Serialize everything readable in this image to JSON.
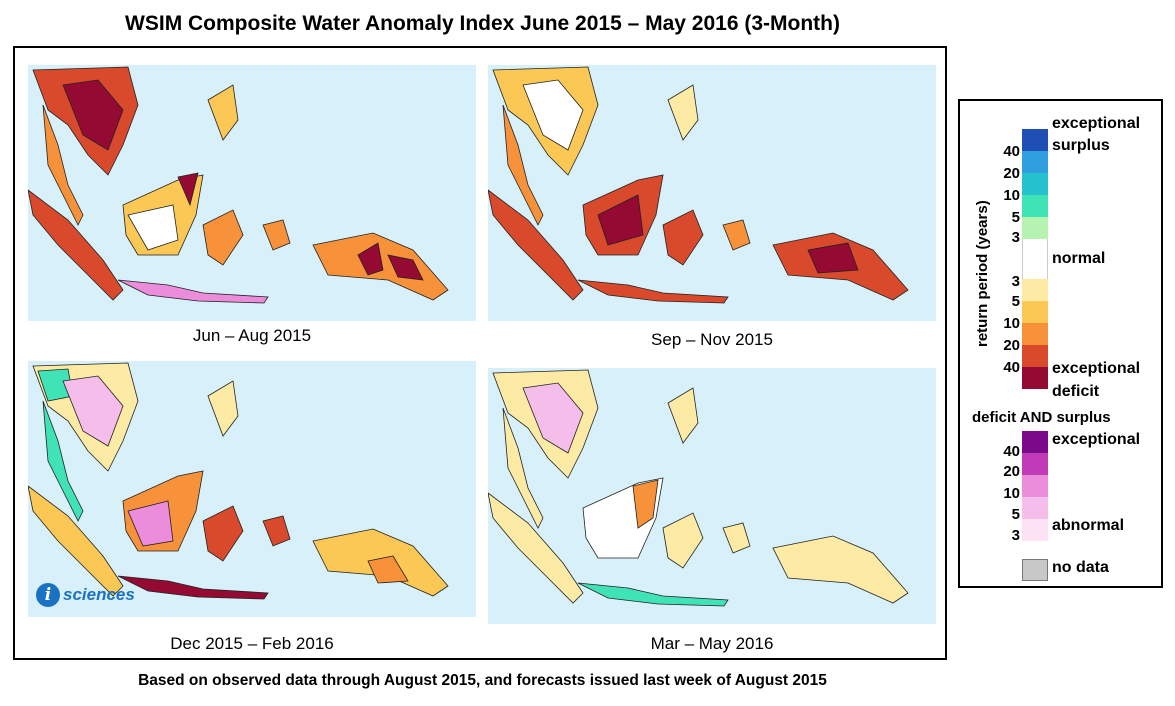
{
  "title": "WSIM Composite Water Anomaly Index June 2015 – May 2016 (3-Month)",
  "footnote": "Based on observed data through August 2015, and forecasts issued last week of August 2015",
  "panels": [
    {
      "caption": "Jun – Aug 2015",
      "dominant_class": "deficit-mixed"
    },
    {
      "caption": "Sep – Nov 2015",
      "dominant_class": "deficit-severe"
    },
    {
      "caption": "Dec 2015 – Feb 2016",
      "dominant_class": "deficit-moderate"
    },
    {
      "caption": "Mar – May 2016",
      "dominant_class": "normal-mild"
    }
  ],
  "logo": {
    "letter": "i",
    "text": "sciences"
  },
  "legend": {
    "axis_title": "return period (years)",
    "surplus_label": [
      "exceptional",
      "surplus"
    ],
    "normal_label": "normal",
    "deficit_label": [
      "exceptional",
      "deficit"
    ],
    "both_title": "deficit AND surplus",
    "both_top_label": "exceptional",
    "both_bottom_label": "abnormal",
    "nodata_label": "no data",
    "surplus_ticks": [
      "40",
      "20",
      "10",
      "5",
      "3"
    ],
    "deficit_ticks": [
      "3",
      "5",
      "10",
      "20",
      "40"
    ],
    "both_ticks": [
      "40",
      "20",
      "10",
      "5",
      "3"
    ],
    "colors": {
      "surplus": [
        "#1f4fb4",
        "#2f9fe0",
        "#25c1cf",
        "#3fe3b5",
        "#b6f2b0"
      ],
      "normal": "#ffffff",
      "deficit": [
        "#fdeaa5",
        "#fcc855",
        "#f7923b",
        "#d84a2b",
        "#950a33"
      ],
      "both": [
        "#7b0a8a",
        "#c13ab7",
        "#ec8ddb",
        "#f5bde9",
        "#fde1f4"
      ],
      "nodata": "#c8c8c8",
      "ocean": "#d7f0fa"
    }
  }
}
